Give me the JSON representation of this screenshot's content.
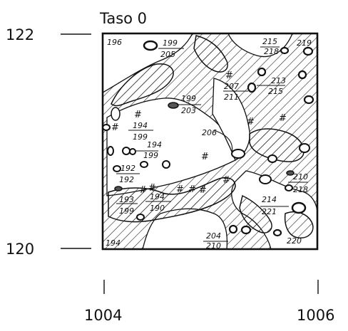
{
  "plan": {
    "title": "Taso 0",
    "y_axis": {
      "top": "122",
      "bottom": "120"
    },
    "x_axis": {
      "left": "1004",
      "right": "1006"
    },
    "feature_labels": [
      "196",
      "199",
      "205",
      "215",
      "218",
      "219",
      "207",
      "211",
      "213",
      "215",
      "199",
      "203",
      "206",
      "194",
      "199",
      "194",
      "199",
      "192",
      "192",
      "193",
      "199",
      "194",
      "190",
      "210",
      "218",
      "214",
      "221",
      "194",
      "204",
      "210",
      "220"
    ],
    "hash_marks": [
      "#",
      "#",
      "#",
      "#",
      "#",
      "#",
      "#",
      "#",
      "#",
      "#",
      "#",
      "#"
    ]
  }
}
